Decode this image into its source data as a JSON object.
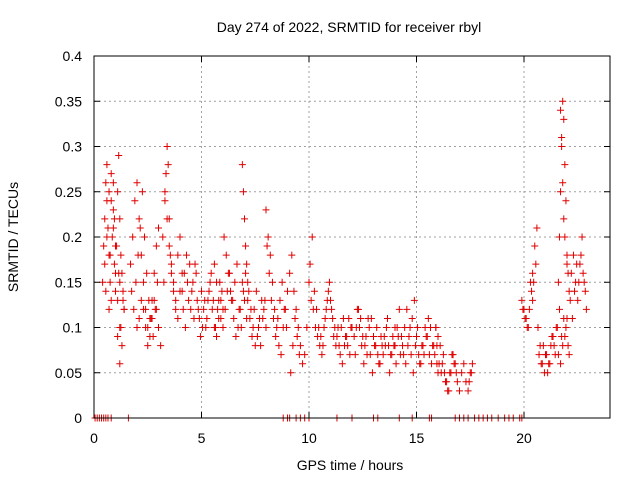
{
  "chart_data": {
    "type": "scatter",
    "title": "Day 274 of 2022, SRMTID for receiver rbyl",
    "xlabel": "GPS time / hours",
    "ylabel": "SRMTID / TECUs",
    "xlim": [
      0,
      24
    ],
    "ylim": [
      0,
      0.4
    ],
    "x_ticks": [
      0,
      5,
      10,
      15,
      20
    ],
    "x_tick_labels": [
      "0",
      "5",
      "10",
      "15",
      "20"
    ],
    "y_ticks": [
      0,
      0.05,
      0.1,
      0.15,
      0.2,
      0.25,
      0.3,
      0.35,
      0.4
    ],
    "y_tick_labels": [
      "0",
      "0.05",
      "0.1",
      "0.15",
      "0.2",
      "0.25",
      "0.3",
      "0.35",
      "0.4"
    ],
    "grid": true,
    "marker": "+",
    "color": "#e00000",
    "series": [
      {
        "name": "SRMTID",
        "x": [
          0.05,
          0.15,
          0.25,
          0.35,
          0.45,
          0.55,
          0.65,
          0.8,
          1.6,
          0.4,
          0.45,
          0.5,
          0.55,
          0.6,
          0.65,
          0.7,
          0.75,
          0.8,
          0.85,
          0.9,
          0.95,
          1.0,
          1.05,
          1.1,
          1.15,
          1.2,
          1.25,
          1.3,
          1.35,
          1.4,
          0.5,
          0.6,
          0.7,
          0.8,
          0.9,
          1.0,
          1.1,
          1.2,
          1.3,
          1.4,
          0.55,
          0.75,
          0.95,
          1.15,
          1.35,
          0.6,
          0.8,
          1.0,
          1.2,
          1.25,
          0.7,
          0.9,
          1.1,
          1.2,
          1.7,
          1.8,
          1.9,
          2.0,
          2.1,
          2.2,
          2.3,
          2.4,
          2.5,
          2.6,
          2.7,
          2.8,
          2.9,
          3.0,
          1.75,
          1.85,
          1.95,
          2.05,
          2.15,
          2.25,
          2.35,
          2.45,
          2.55,
          2.65,
          2.75,
          2.85,
          2.95,
          2.0,
          2.1,
          2.2,
          2.3,
          2.4,
          2.5,
          2.6,
          2.7,
          2.8,
          2.9,
          3.0,
          3.1,
          3.2,
          3.3,
          3.35,
          3.4,
          3.45,
          3.5,
          3.55,
          3.6,
          3.7,
          3.8,
          3.9,
          4.0,
          3.25,
          3.3,
          3.4,
          3.5,
          3.6,
          3.7,
          3.8,
          3.9,
          4.0,
          4.1,
          4.1,
          4.2,
          4.3,
          4.4,
          4.5,
          4.6,
          4.7,
          4.8,
          4.9,
          5.0,
          5.1,
          5.2,
          5.3,
          5.4,
          5.5,
          5.6,
          5.7,
          5.8,
          5.9,
          6.0,
          4.15,
          4.25,
          4.35,
          4.45,
          4.55,
          4.65,
          4.75,
          4.85,
          4.95,
          5.05,
          5.15,
          5.25,
          5.35,
          5.45,
          5.55,
          5.65,
          5.75,
          5.85,
          5.95,
          5.6,
          5.7,
          5.8,
          5.9,
          6.0,
          6.1,
          6.2,
          6.3,
          6.4,
          6.5,
          6.6,
          6.7,
          6.8,
          6.9,
          7.0,
          7.1,
          7.2,
          7.3,
          7.4,
          7.5,
          7.6,
          7.7,
          7.8,
          7.9,
          8.0,
          6.05,
          6.15,
          6.25,
          6.35,
          6.45,
          6.55,
          6.65,
          6.75,
          6.85,
          6.95,
          7.05,
          7.15,
          7.25,
          7.35,
          7.45,
          7.55,
          7.65,
          7.75,
          7.85,
          7.95,
          6.9,
          6.95,
          7.0,
          7.05,
          7.1,
          7.15,
          8.0,
          8.1,
          8.2,
          8.3,
          8.4,
          8.5,
          8.6,
          8.7,
          8.8,
          8.9,
          9.0,
          8.05,
          8.15,
          8.25,
          8.35,
          8.45,
          8.55,
          8.65,
          8.75,
          8.85,
          8.95,
          9.1,
          9.2,
          9.3,
          9.4,
          9.5,
          9.6,
          9.7,
          9.8,
          9.9,
          9.15,
          9.25,
          9.35,
          9.45,
          9.55,
          10.0,
          10.1,
          10.2,
          10.3,
          10.4,
          10.5,
          10.6,
          10.7,
          10.8,
          10.9,
          11.0,
          11.1,
          11.2,
          11.3,
          11.4,
          11.5,
          11.6,
          11.7,
          11.8,
          11.9,
          12.0,
          10.05,
          10.15,
          10.25,
          10.35,
          10.45,
          10.55,
          10.65,
          10.75,
          10.85,
          10.95,
          11.05,
          11.15,
          11.25,
          11.35,
          11.45,
          11.55,
          11.65,
          11.75,
          11.85,
          11.95,
          12.1,
          12.2,
          12.3,
          12.4,
          12.5,
          12.6,
          12.7,
          12.8,
          12.9,
          13.0,
          13.1,
          13.2,
          13.3,
          13.4,
          13.5,
          13.6,
          13.7,
          13.8,
          13.9,
          14.0,
          12.15,
          12.25,
          12.35,
          12.45,
          12.55,
          12.65,
          12.75,
          12.85,
          12.95,
          13.05,
          13.15,
          13.25,
          13.35,
          13.45,
          13.55,
          13.65,
          13.75,
          13.85,
          13.95,
          14.0,
          14.1,
          14.2,
          14.3,
          14.4,
          14.5,
          14.6,
          14.7,
          14.8,
          14.9,
          15.0,
          15.1,
          15.2,
          15.3,
          15.4,
          15.5,
          15.6,
          15.7,
          15.8,
          15.9,
          16.0,
          14.05,
          14.15,
          14.25,
          14.35,
          14.45,
          14.55,
          14.65,
          14.75,
          14.85,
          14.95,
          15.05,
          15.15,
          15.25,
          15.35,
          15.45,
          15.55,
          15.65,
          15.75,
          15.85,
          15.95,
          15.9,
          16.0,
          16.1,
          16.2,
          16.3,
          16.4,
          16.5,
          16.6,
          16.7,
          16.8,
          16.9,
          17.0,
          17.1,
          17.2,
          17.3,
          17.4,
          17.5,
          17.6,
          15.95,
          16.05,
          16.15,
          16.25,
          16.35,
          16.45,
          16.55,
          16.65,
          16.75,
          16.85,
          17.45,
          17.55,
          8.8,
          9.0,
          9.1,
          9.4,
          9.6,
          9.8,
          10.0,
          11.3,
          12.0,
          13.0,
          13.2,
          14.2,
          14.8,
          15.6,
          15.7,
          16.8,
          17.0,
          17.2,
          17.4,
          17.7,
          17.9,
          18.1,
          18.3,
          18.5,
          18.8,
          19.1,
          19.3,
          19.5,
          19.8,
          19.9,
          19.9,
          20.0,
          20.1,
          20.2,
          20.3,
          20.4,
          19.95,
          20.05,
          20.15,
          20.25,
          20.35,
          20.4,
          20.5,
          20.6,
          20.7,
          20.8,
          20.9,
          21.0,
          21.1,
          21.2,
          21.3,
          21.4,
          21.5,
          21.6,
          21.7,
          21.8,
          21.9,
          22.0,
          22.1,
          20.45,
          20.55,
          20.65,
          20.75,
          20.85,
          20.95,
          21.05,
          21.15,
          21.25,
          21.35,
          21.45,
          21.55,
          21.65,
          21.75,
          21.85,
          21.95,
          22.05,
          21.6,
          21.65,
          21.7,
          21.75,
          21.8,
          21.85,
          21.9,
          21.95,
          22.0,
          21.7,
          21.75,
          21.8,
          21.85,
          21.9,
          22.0,
          22.1,
          22.2,
          22.3,
          22.4,
          22.5,
          22.6,
          22.7,
          22.8,
          22.9,
          22.05,
          22.15,
          22.25,
          22.35,
          22.45,
          22.55,
          22.65,
          22.75,
          22.85
        ],
        "y": [
          0,
          0,
          0,
          0,
          0,
          0,
          0,
          0,
          0,
          0.15,
          0.19,
          0.22,
          0.26,
          0.24,
          0.21,
          0.18,
          0.15,
          0.13,
          0.2,
          0.23,
          0.17,
          0.14,
          0.19,
          0.25,
          0.29,
          0.22,
          0.18,
          0.16,
          0.14,
          0.12,
          0.17,
          0.2,
          0.25,
          0.27,
          0.21,
          0.16,
          0.13,
          0.1,
          0.08,
          0.12,
          0.14,
          0.18,
          0.22,
          0.16,
          0.13,
          0.28,
          0.24,
          0.19,
          0.15,
          0.1,
          0.12,
          0.26,
          0.09,
          0.06,
          0.17,
          0.2,
          0.24,
          0.26,
          0.22,
          0.18,
          0.15,
          0.12,
          0.1,
          0.11,
          0.13,
          0.16,
          0.19,
          0.21,
          0.14,
          0.12,
          0.15,
          0.18,
          0.21,
          0.25,
          0.2,
          0.16,
          0.13,
          0.11,
          0.09,
          0.12,
          0.15,
          0.1,
          0.11,
          0.13,
          0.12,
          0.1,
          0.08,
          0.09,
          0.11,
          0.13,
          0.12,
          0.1,
          0.08,
          0.2,
          0.24,
          0.27,
          0.3,
          0.28,
          0.22,
          0.18,
          0.16,
          0.14,
          0.12,
          0.18,
          0.2,
          0.15,
          0.25,
          0.22,
          0.19,
          0.17,
          0.15,
          0.13,
          0.11,
          0.14,
          0.16,
          0.14,
          0.16,
          0.18,
          0.13,
          0.12,
          0.15,
          0.17,
          0.13,
          0.11,
          0.14,
          0.12,
          0.1,
          0.13,
          0.15,
          0.12,
          0.1,
          0.09,
          0.11,
          0.13,
          0.12,
          0.12,
          0.1,
          0.15,
          0.17,
          0.14,
          0.11,
          0.16,
          0.12,
          0.09,
          0.1,
          0.13,
          0.11,
          0.14,
          0.16,
          0.13,
          0.1,
          0.12,
          0.15,
          0.14,
          0.17,
          0.15,
          0.13,
          0.11,
          0.1,
          0.12,
          0.14,
          0.16,
          0.13,
          0.11,
          0.09,
          0.1,
          0.12,
          0.15,
          0.13,
          0.11,
          0.14,
          0.12,
          0.1,
          0.08,
          0.09,
          0.11,
          0.13,
          0.12,
          0.1,
          0.2,
          0.18,
          0.16,
          0.14,
          0.13,
          0.15,
          0.17,
          0.12,
          0.1,
          0.14,
          0.16,
          0.13,
          0.11,
          0.09,
          0.12,
          0.14,
          0.1,
          0.08,
          0.11,
          0.13,
          0.28,
          0.25,
          0.22,
          0.19,
          0.17,
          0.15,
          0.23,
          0.2,
          0.18,
          0.15,
          0.12,
          0.1,
          0.08,
          0.07,
          0.1,
          0.12,
          0.14,
          0.19,
          0.16,
          0.13,
          0.11,
          0.09,
          0.11,
          0.13,
          0.15,
          0.12,
          0.1,
          0.16,
          0.18,
          0.14,
          0.12,
          0.1,
          0.08,
          0.06,
          0.07,
          0.1,
          0.05,
          0.08,
          0.11,
          0.09,
          0.07,
          0.15,
          0.13,
          0.12,
          0.1,
          0.09,
          0.08,
          0.07,
          0.1,
          0.12,
          0.14,
          0.13,
          0.11,
          0.1,
          0.09,
          0.08,
          0.1,
          0.11,
          0.09,
          0.08,
          0.07,
          0.1,
          0.17,
          0.2,
          0.14,
          0.12,
          0.1,
          0.09,
          0.08,
          0.11,
          0.13,
          0.15,
          0.12,
          0.09,
          0.08,
          0.1,
          0.07,
          0.06,
          0.08,
          0.09,
          0.11,
          0.1,
          0.09,
          0.1,
          0.12,
          0.11,
          0.09,
          0.08,
          0.07,
          0.1,
          0.11,
          0.09,
          0.08,
          0.07,
          0.06,
          0.08,
          0.09,
          0.1,
          0.08,
          0.07,
          0.09,
          0.1,
          0.07,
          0.12,
          0.1,
          0.08,
          0.06,
          0.09,
          0.11,
          0.07,
          0.05,
          0.08,
          0.1,
          0.06,
          0.09,
          0.07,
          0.08,
          0.11,
          0.05,
          0.07,
          0.08,
          0.08,
          0.1,
          0.12,
          0.09,
          0.07,
          0.06,
          0.08,
          0.1,
          0.11,
          0.13,
          0.09,
          0.07,
          0.06,
          0.08,
          0.1,
          0.09,
          0.07,
          0.06,
          0.08,
          0.1,
          0.05,
          0.06,
          0.09,
          0.07,
          0.08,
          0.1,
          0.12,
          0.09,
          0.07,
          0.05,
          0.08,
          0.1,
          0.06,
          0.08,
          0.07,
          0.09,
          0.11,
          0.1,
          0.08,
          0.07,
          0.06,
          0.1,
          0.09,
          0.08,
          0.06,
          0.05,
          0.04,
          0.03,
          0.05,
          0.07,
          0.06,
          0.04,
          0.03,
          0.05,
          0.06,
          0.04,
          0.03,
          0.05,
          0.06,
          0.08,
          0.06,
          0.05,
          0.07,
          0.04,
          0.03,
          0.05,
          0.07,
          0.06,
          0.05,
          0.04,
          0.05,
          0,
          0,
          0,
          0,
          0,
          0,
          0,
          0,
          0,
          0,
          0,
          0,
          0,
          0,
          0,
          0,
          0,
          0,
          0,
          0,
          0,
          0,
          0,
          0,
          0,
          0,
          0,
          0,
          0,
          0,
          0.13,
          0.12,
          0.11,
          0.1,
          0.15,
          0.13,
          0.12,
          0.11,
          0.1,
          0.12,
          0.14,
          0.16,
          0.19,
          0.21,
          0.07,
          0.06,
          0.08,
          0.07,
          0.05,
          0.06,
          0.09,
          0.08,
          0.1,
          0.07,
          0.06,
          0.08,
          0.09,
          0.11,
          0.07,
          0.15,
          0.17,
          0.1,
          0.08,
          0.06,
          0.05,
          0.07,
          0.06,
          0.08,
          0.09,
          0.07,
          0.1,
          0.12,
          0.09,
          0.11,
          0.1,
          0.08,
          0.15,
          0.2,
          0.25,
          0.3,
          0.35,
          0.33,
          0.28,
          0.24,
          0.18,
          0.34,
          0.31,
          0.26,
          0.22,
          0.2,
          0.17,
          0.14,
          0.16,
          0.18,
          0.15,
          0.13,
          0.17,
          0.2,
          0.15,
          0.12,
          0.16,
          0.13,
          0.11,
          0.14,
          0.17,
          0.15,
          0.18,
          0.16,
          0.14
        ]
      }
    ]
  }
}
